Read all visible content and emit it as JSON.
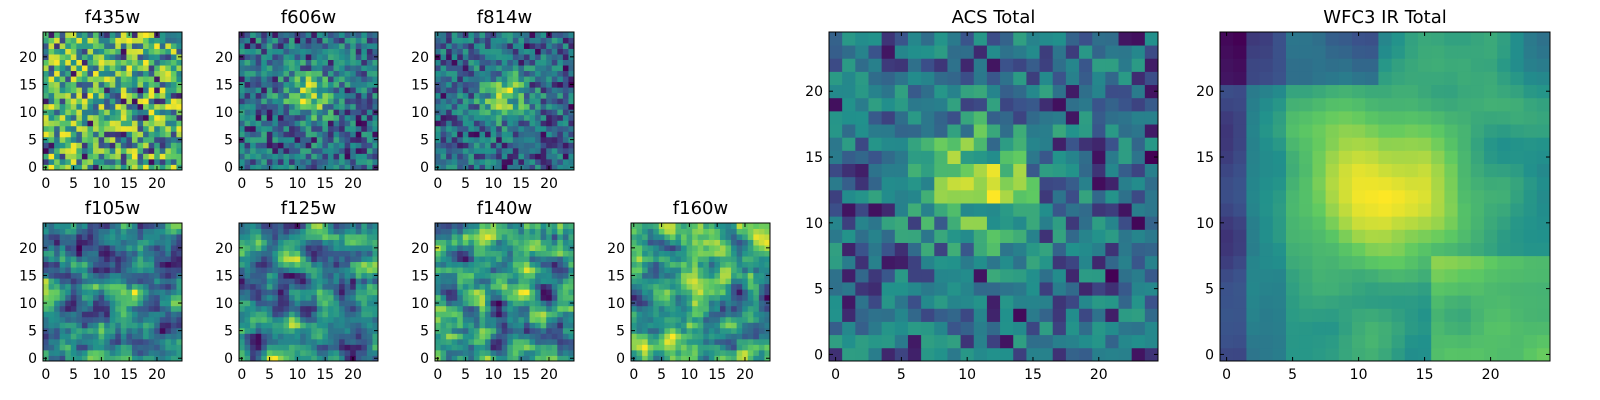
{
  "figure": {
    "colormap": "viridis",
    "colors": [
      "#440154",
      "#3b528b",
      "#21918c",
      "#5ec962",
      "#fde725"
    ],
    "background": "#ffffff"
  },
  "chart_data": [
    {
      "type": "heatmap",
      "id": "f435w",
      "title": "f435w",
      "grid": [
        25,
        25
      ],
      "pattern": "noise",
      "xticks": [
        0,
        5,
        10,
        15,
        20
      ],
      "yticks": [
        0,
        5,
        10,
        15,
        20
      ],
      "xlim": [
        -0.5,
        24.5
      ],
      "ylim": [
        -0.5,
        24.5
      ]
    },
    {
      "type": "heatmap",
      "id": "f606w",
      "title": "f606w",
      "grid": [
        25,
        25
      ],
      "pattern": "faint-central-source",
      "xticks": [
        0,
        5,
        10,
        15,
        20
      ],
      "yticks": [
        0,
        5,
        10,
        15,
        20
      ],
      "xlim": [
        -0.5,
        24.5
      ],
      "ylim": [
        -0.5,
        24.5
      ]
    },
    {
      "type": "heatmap",
      "id": "f814w",
      "title": "f814w",
      "grid": [
        25,
        25
      ],
      "pattern": "faint-central-source",
      "xticks": [
        0,
        5,
        10,
        15,
        20
      ],
      "yticks": [
        0,
        5,
        10,
        15,
        20
      ],
      "xlim": [
        -0.5,
        24.5
      ],
      "ylim": [
        -0.5,
        24.5
      ]
    },
    {
      "type": "heatmap",
      "id": "f105w",
      "title": "f105w",
      "grid": [
        25,
        25
      ],
      "pattern": "smooth-noise",
      "xticks": [
        0,
        5,
        10,
        15,
        20
      ],
      "yticks": [
        0,
        5,
        10,
        15,
        20
      ],
      "xlim": [
        -0.5,
        24.5
      ],
      "ylim": [
        -0.5,
        24.5
      ]
    },
    {
      "type": "heatmap",
      "id": "f125w",
      "title": "f125w",
      "grid": [
        25,
        25
      ],
      "pattern": "smooth-noise",
      "xticks": [
        0,
        5,
        10,
        15,
        20
      ],
      "yticks": [
        0,
        5,
        10,
        15,
        20
      ],
      "xlim": [
        -0.5,
        24.5
      ],
      "ylim": [
        -0.5,
        24.5
      ]
    },
    {
      "type": "heatmap",
      "id": "f140w",
      "title": "f140w",
      "grid": [
        25,
        25
      ],
      "pattern": "smooth-noise",
      "xticks": [
        0,
        5,
        10,
        15,
        20
      ],
      "yticks": [
        0,
        5,
        10,
        15,
        20
      ],
      "xlim": [
        -0.5,
        24.5
      ],
      "ylim": [
        -0.5,
        24.5
      ]
    },
    {
      "type": "heatmap",
      "id": "f160w",
      "title": "f160w",
      "grid": [
        25,
        25
      ],
      "pattern": "smooth-noise",
      "xticks": [
        0,
        5,
        10,
        15,
        20
      ],
      "yticks": [
        0,
        5,
        10,
        15,
        20
      ],
      "xlim": [
        -0.5,
        24.5
      ],
      "ylim": [
        -0.5,
        24.5
      ]
    },
    {
      "type": "heatmap",
      "id": "acs-total",
      "title": "ACS Total",
      "grid": [
        25,
        25
      ],
      "pattern": "central-source-with-noise",
      "source_center": [
        11,
        13
      ],
      "xticks": [
        0,
        5,
        10,
        15,
        20
      ],
      "yticks": [
        0,
        5,
        10,
        15,
        20
      ],
      "xlim": [
        -0.5,
        24.5
      ],
      "ylim": [
        -0.5,
        24.5
      ]
    },
    {
      "type": "heatmap",
      "id": "wfc3-ir-total",
      "title": "WFC3 IR Total",
      "grid": [
        25,
        25
      ],
      "pattern": "central-source-smooth",
      "source_center": [
        12,
        13
      ],
      "xticks": [
        0,
        5,
        10,
        15,
        20
      ],
      "yticks": [
        0,
        5,
        10,
        15,
        20
      ],
      "xlim": [
        -0.5,
        24.5
      ],
      "ylim": [
        -0.5,
        24.5
      ]
    }
  ]
}
